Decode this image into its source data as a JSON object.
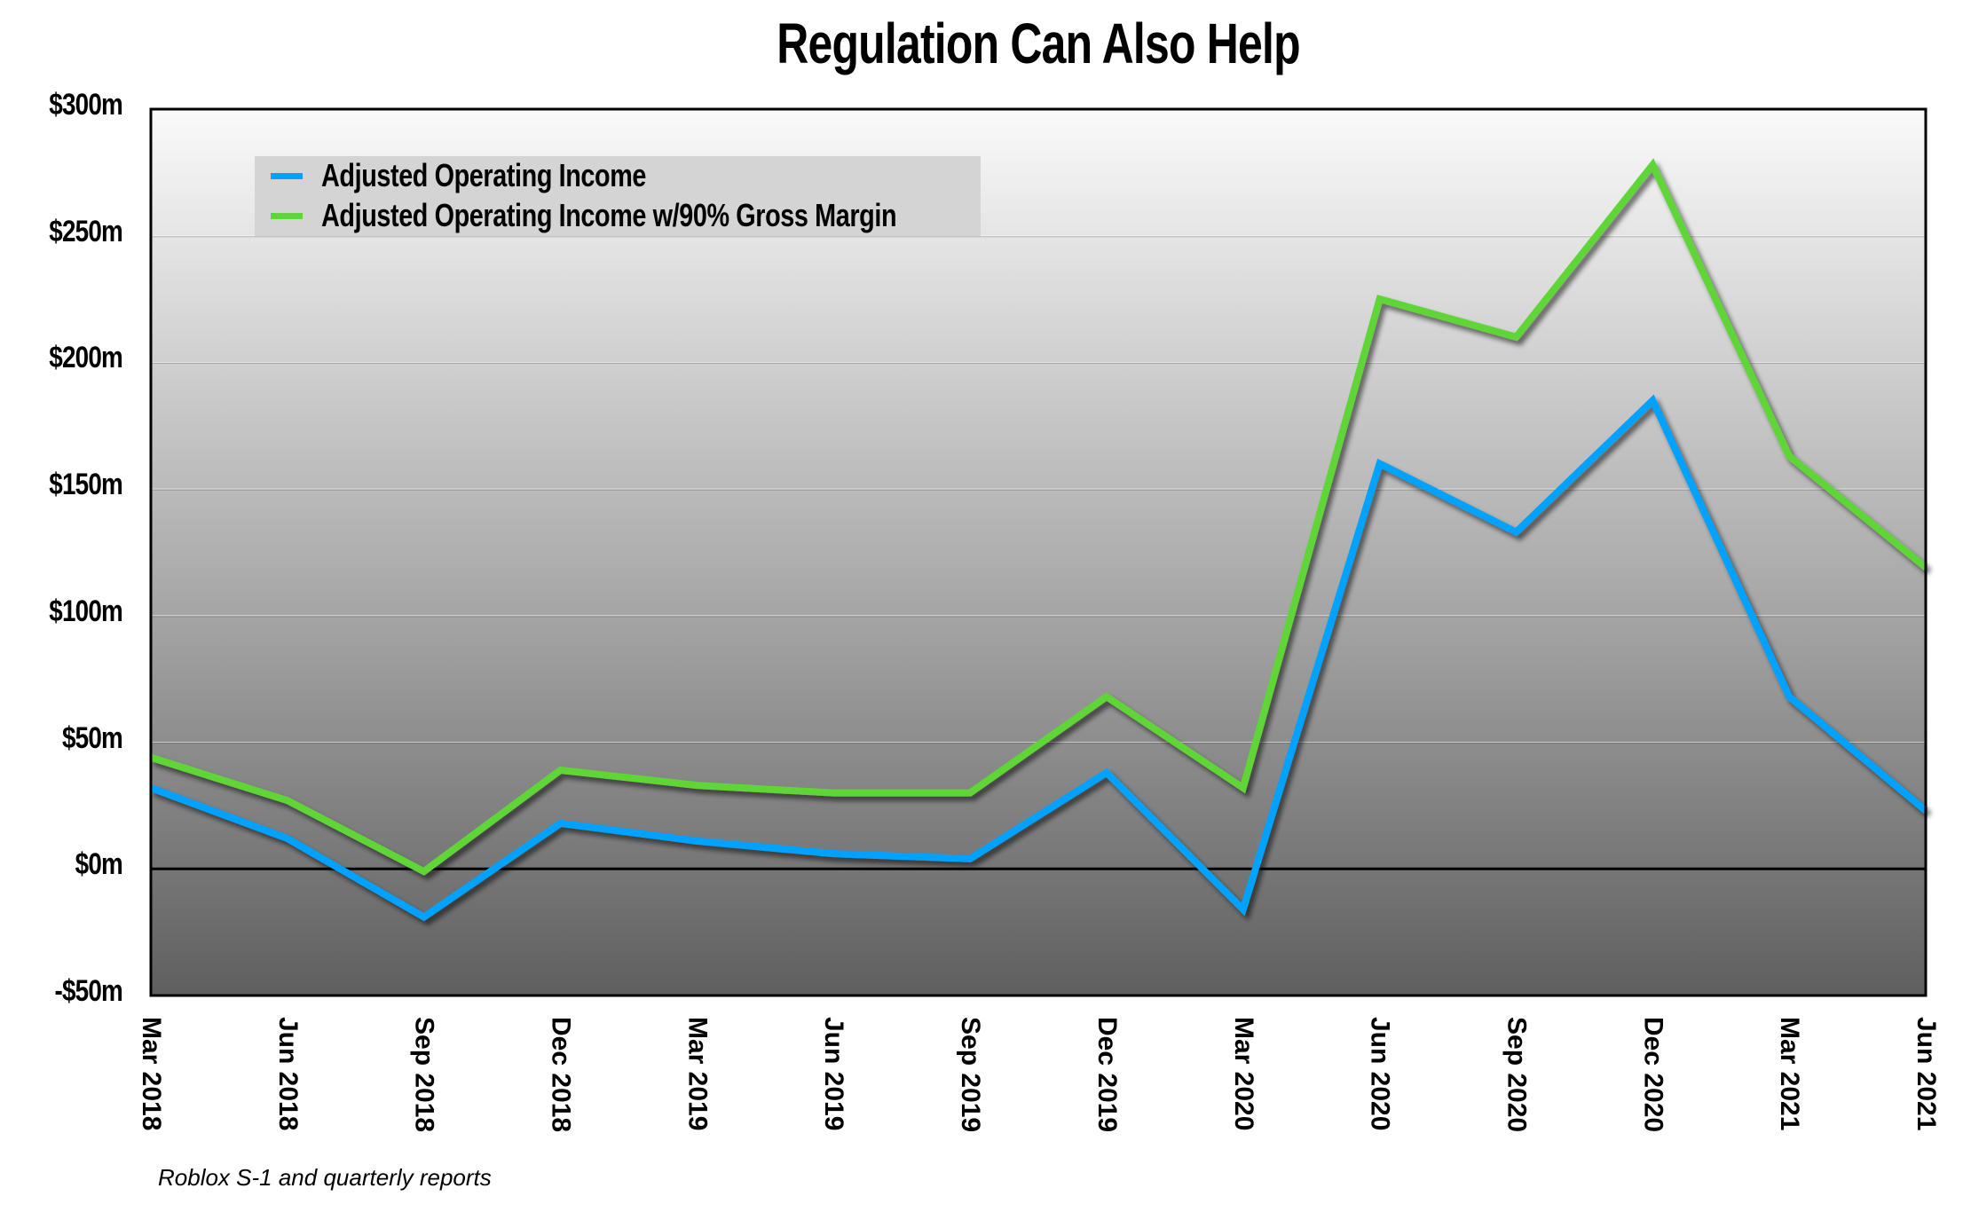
{
  "title": "Regulation Can Also Help",
  "footnote": "Roblox S-1 and quarterly reports",
  "legend": [
    {
      "label": "Adjusted Operating Income",
      "color": "#00a2ff"
    },
    {
      "label": "Adjusted Operating Income w/90% Gross Margin",
      "color": "#5ed538"
    }
  ],
  "y_ticks": [
    "$300m",
    "$250m",
    "$200m",
    "$150m",
    "$100m",
    "$50m",
    "$0m",
    "-$50m"
  ],
  "x_ticks": [
    "Mar 2018",
    "Jun 2018",
    "Sep 2018",
    "Dec 2018",
    "Mar 2019",
    "Jun 2019",
    "Sep 2019",
    "Dec 2019",
    "Mar 2020",
    "Jun 2020",
    "Sep 2020",
    "Dec 2020",
    "Mar 2021",
    "Jun 2021"
  ],
  "chart_data": {
    "type": "line",
    "title": "Regulation Can Also Help",
    "xlabel": "",
    "ylabel": "",
    "ylim": [
      -50,
      300
    ],
    "y_tick_step": 50,
    "grid": true,
    "legend_position": "upper-left (inside)",
    "categories": [
      "Mar 2018",
      "Jun 2018",
      "Sep 2018",
      "Dec 2018",
      "Mar 2019",
      "Jun 2019",
      "Sep 2019",
      "Dec 2019",
      "Mar 2020",
      "Jun 2020",
      "Sep 2020",
      "Dec 2020",
      "Mar 2021",
      "Jun 2021"
    ],
    "series": [
      {
        "name": "Adjusted Operating Income",
        "color": "#00a2ff",
        "values": [
          32,
          12,
          -19,
          18,
          11,
          6,
          4,
          38,
          -16,
          160,
          133,
          185,
          68,
          23
        ]
      },
      {
        "name": "Adjusted Operating Income w/90% Gross Margin",
        "color": "#5ed538",
        "values": [
          44,
          27,
          -1,
          39,
          33,
          30,
          30,
          68,
          32,
          225,
          210,
          278,
          163,
          119
        ]
      }
    ],
    "units": "$ millions",
    "source": "Roblox S-1 and quarterly reports"
  }
}
